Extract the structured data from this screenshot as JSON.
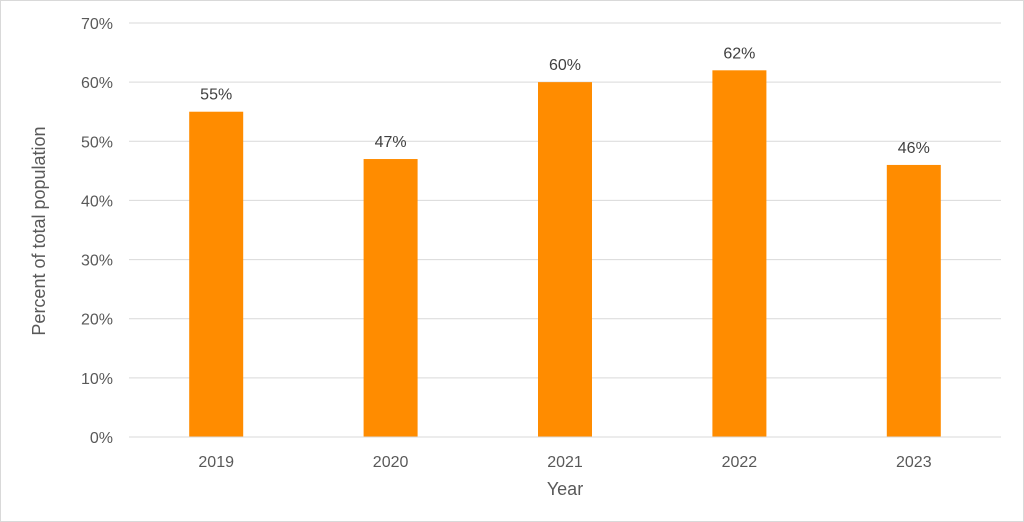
{
  "chart_data": {
    "type": "bar",
    "title": "",
    "xlabel": "Year",
    "ylabel": "Percent of total population",
    "categories": [
      "2019",
      "2020",
      "2021",
      "2022",
      "2023"
    ],
    "values": [
      55,
      47,
      60,
      62,
      46
    ],
    "data_labels": [
      "55%",
      "47%",
      "60%",
      "62%",
      "46%"
    ],
    "ylim": [
      0,
      70
    ],
    "y_ticks": [
      0,
      10,
      20,
      30,
      40,
      50,
      60,
      70
    ],
    "y_tick_labels": [
      "0%",
      "10%",
      "20%",
      "30%",
      "40%",
      "50%",
      "60%",
      "70%"
    ],
    "grid": true,
    "legend": "none",
    "bar_color": "#FF8C00",
    "gridline_color": "#d9d9d9"
  }
}
